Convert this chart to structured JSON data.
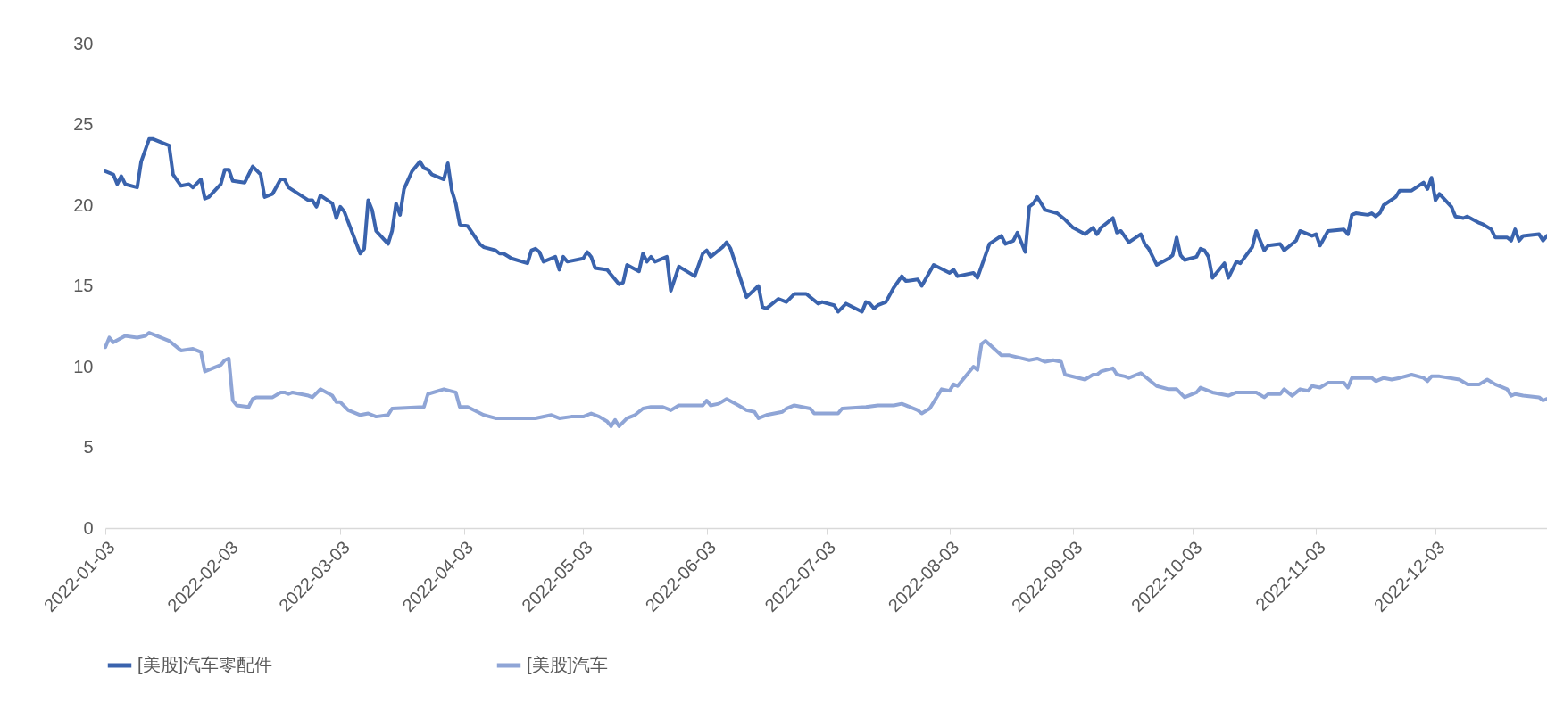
{
  "chart_data": {
    "type": "line",
    "legend": "bottom",
    "xlim": [
      "2022-01-03",
      "2022-12-31"
    ],
    "xticks": [
      "2022-01-03",
      "2022-02-03",
      "2022-03-03",
      "2022-04-03",
      "2022-05-03",
      "2022-06-03",
      "2022-07-03",
      "2022-08-03",
      "2022-09-03",
      "2022-10-03",
      "2022-11-03",
      "2022-12-03"
    ],
    "ylim": [
      0,
      30
    ],
    "yticks": [
      0,
      5,
      10,
      15,
      20,
      25,
      30
    ],
    "series": [
      {
        "name": "[美股]汽车零配件",
        "color": "#3a63ad",
        "x": [
          "2022-01-03",
          "2022-01-05",
          "2022-01-06",
          "2022-01-07",
          "2022-01-08",
          "2022-01-11",
          "2022-01-12",
          "2022-01-14",
          "2022-01-15",
          "2022-01-19",
          "2022-01-20",
          "2022-01-22",
          "2022-01-24",
          "2022-01-25",
          "2022-01-27",
          "2022-01-28",
          "2022-01-29",
          "2022-02-01",
          "2022-02-02",
          "2022-02-03",
          "2022-02-04",
          "2022-02-07",
          "2022-02-09",
          "2022-02-11",
          "2022-02-12",
          "2022-02-14",
          "2022-02-16",
          "2022-02-17",
          "2022-02-18",
          "2022-02-23",
          "2022-02-24",
          "2022-02-25",
          "2022-02-26",
          "2022-03-01",
          "2022-03-02",
          "2022-03-03",
          "2022-03-04",
          "2022-03-08",
          "2022-03-09",
          "2022-03-10",
          "2022-03-11",
          "2022-03-12",
          "2022-03-15",
          "2022-03-16",
          "2022-03-17",
          "2022-03-18",
          "2022-03-19",
          "2022-03-21",
          "2022-03-23",
          "2022-03-24",
          "2022-03-25",
          "2022-03-26",
          "2022-03-29",
          "2022-03-30",
          "2022-03-31",
          "2022-04-01",
          "2022-04-02",
          "2022-04-04",
          "2022-04-07",
          "2022-04-08",
          "2022-04-11",
          "2022-04-12",
          "2022-04-13",
          "2022-04-15",
          "2022-04-19",
          "2022-04-20",
          "2022-04-21",
          "2022-04-22",
          "2022-04-23",
          "2022-04-26",
          "2022-04-27",
          "2022-04-28",
          "2022-04-29",
          "2022-05-03",
          "2022-05-04",
          "2022-05-05",
          "2022-05-06",
          "2022-05-09",
          "2022-05-11",
          "2022-05-12",
          "2022-05-13",
          "2022-05-14",
          "2022-05-17",
          "2022-05-18",
          "2022-05-19",
          "2022-05-20",
          "2022-05-21",
          "2022-05-24",
          "2022-05-25",
          "2022-05-27",
          "2022-05-31",
          "2022-06-02",
          "2022-06-03",
          "2022-06-04",
          "2022-06-07",
          "2022-06-08",
          "2022-06-09",
          "2022-06-13",
          "2022-06-16",
          "2022-06-17",
          "2022-06-18",
          "2022-06-21",
          "2022-06-23",
          "2022-06-25",
          "2022-06-28",
          "2022-07-01",
          "2022-07-02",
          "2022-07-05",
          "2022-07-06",
          "2022-07-08",
          "2022-07-12",
          "2022-07-13",
          "2022-07-14",
          "2022-07-15",
          "2022-07-16",
          "2022-07-18",
          "2022-07-20",
          "2022-07-22",
          "2022-07-23",
          "2022-07-26",
          "2022-07-27",
          "2022-07-30",
          "2022-08-03",
          "2022-08-04",
          "2022-08-05",
          "2022-08-09",
          "2022-08-10",
          "2022-08-13",
          "2022-08-16",
          "2022-08-17",
          "2022-08-19",
          "2022-08-20",
          "2022-08-22",
          "2022-08-23",
          "2022-08-24",
          "2022-08-25",
          "2022-08-27",
          "2022-08-30",
          "2022-09-01",
          "2022-09-03",
          "2022-09-06",
          "2022-09-08",
          "2022-09-09",
          "2022-09-10",
          "2022-09-13",
          "2022-09-14",
          "2022-09-15",
          "2022-09-17",
          "2022-09-20",
          "2022-09-21",
          "2022-09-22",
          "2022-09-24",
          "2022-09-27",
          "2022-09-28",
          "2022-09-29",
          "2022-09-30",
          "2022-10-01",
          "2022-10-04",
          "2022-10-05",
          "2022-10-06",
          "2022-10-07",
          "2022-10-08",
          "2022-10-11",
          "2022-10-12",
          "2022-10-14",
          "2022-10-15",
          "2022-10-18",
          "2022-10-19",
          "2022-10-21",
          "2022-10-22",
          "2022-10-25",
          "2022-10-26",
          "2022-10-29",
          "2022-10-30",
          "2022-11-02",
          "2022-11-03",
          "2022-11-04",
          "2022-11-06",
          "2022-11-10",
          "2022-11-11",
          "2022-11-12",
          "2022-11-13",
          "2022-11-16",
          "2022-11-17",
          "2022-11-18",
          "2022-11-19",
          "2022-11-20",
          "2022-11-23",
          "2022-11-24",
          "2022-11-27",
          "2022-11-30",
          "2022-12-01",
          "2022-12-02",
          "2022-12-03",
          "2022-12-04",
          "2022-12-07",
          "2022-12-08",
          "2022-12-10",
          "2022-12-11",
          "2022-12-14",
          "2022-12-15",
          "2022-12-17",
          "2022-12-18",
          "2022-12-21",
          "2022-12-22",
          "2022-12-23",
          "2022-12-24",
          "2022-12-25",
          "2022-12-29",
          "2022-12-30",
          "2022-12-31"
        ],
        "values": [
          22.1,
          21.9,
          21.3,
          21.8,
          21.3,
          21.1,
          22.7,
          24.1,
          24.1,
          23.7,
          21.9,
          21.2,
          21.3,
          21.1,
          21.6,
          20.4,
          20.5,
          21.3,
          22.2,
          22.2,
          21.5,
          21.4,
          22.4,
          21.9,
          20.5,
          20.7,
          21.6,
          21.6,
          21.1,
          20.3,
          20.3,
          19.9,
          20.6,
          20.1,
          19.2,
          19.9,
          19.6,
          17.0,
          17.3,
          20.3,
          19.7,
          18.4,
          17.6,
          18.4,
          20.1,
          19.4,
          21.0,
          22.1,
          22.7,
          22.3,
          22.2,
          21.9,
          21.6,
          22.6,
          20.9,
          20.1,
          18.8,
          18.7,
          17.6,
          17.4,
          17.2,
          17.0,
          17.0,
          16.7,
          16.4,
          17.2,
          17.3,
          17.1,
          16.5,
          16.8,
          16.0,
          16.8,
          16.5,
          16.7,
          17.1,
          16.8,
          16.1,
          16.0,
          15.4,
          15.1,
          15.2,
          16.3,
          15.9,
          17.0,
          16.5,
          16.8,
          16.5,
          16.8,
          14.7,
          16.2,
          15.6,
          17.0,
          17.2,
          16.8,
          17.4,
          17.7,
          17.3,
          14.3,
          15.0,
          13.7,
          13.6,
          14.2,
          14.0,
          14.5,
          14.5,
          13.9,
          14.0,
          13.8,
          13.4,
          13.9,
          13.4,
          14.0,
          13.9,
          13.6,
          13.8,
          14.0,
          14.9,
          15.6,
          15.3,
          15.4,
          15.0,
          16.3,
          15.8,
          16.0,
          15.6,
          15.8,
          15.5,
          17.6,
          18.1,
          17.6,
          17.8,
          18.3,
          17.1,
          19.9,
          20.1,
          20.5,
          19.7,
          19.5,
          19.1,
          18.6,
          18.2,
          18.6,
          18.2,
          18.6,
          19.2,
          18.3,
          18.4,
          17.7,
          18.2,
          17.6,
          17.3,
          16.3,
          16.7,
          16.9,
          18.0,
          16.9,
          16.6,
          16.8,
          17.3,
          17.2,
          16.8,
          15.5,
          16.4,
          15.5,
          16.5,
          16.4,
          17.4,
          18.4,
          17.2,
          17.5,
          17.6,
          17.2,
          17.8,
          18.4,
          18.1,
          18.2,
          17.5,
          18.4,
          18.5,
          18.2,
          19.4,
          19.5,
          19.4,
          19.5,
          19.3,
          19.5,
          20.0,
          20.5,
          20.9,
          20.9,
          21.4,
          21.0,
          21.7,
          20.3,
          20.7,
          19.9,
          19.3,
          19.2,
          19.3,
          18.9,
          18.8,
          18.5,
          18.0,
          18.0,
          17.8,
          18.5,
          17.8,
          18.1,
          18.2,
          17.8,
          18.1
        ]
      },
      {
        "name": "[美股]汽车",
        "color": "#8fa5d6",
        "x": [
          "2022-01-03",
          "2022-01-04",
          "2022-01-05",
          "2022-01-08",
          "2022-01-11",
          "2022-01-13",
          "2022-01-14",
          "2022-01-15",
          "2022-01-19",
          "2022-01-22",
          "2022-01-25",
          "2022-01-27",
          "2022-01-28",
          "2022-02-01",
          "2022-02-02",
          "2022-02-03",
          "2022-02-04",
          "2022-02-05",
          "2022-02-08",
          "2022-02-09",
          "2022-02-10",
          "2022-02-14",
          "2022-02-16",
          "2022-02-17",
          "2022-02-18",
          "2022-02-19",
          "2022-02-23",
          "2022-02-24",
          "2022-02-26",
          "2022-03-01",
          "2022-03-02",
          "2022-03-03",
          "2022-03-05",
          "2022-03-08",
          "2022-03-10",
          "2022-03-12",
          "2022-03-15",
          "2022-03-16",
          "2022-03-24",
          "2022-03-25",
          "2022-03-29",
          "2022-04-01",
          "2022-04-02",
          "2022-04-04",
          "2022-04-08",
          "2022-04-11",
          "2022-04-17",
          "2022-04-21",
          "2022-04-25",
          "2022-04-27",
          "2022-04-30",
          "2022-05-03",
          "2022-05-05",
          "2022-05-07",
          "2022-05-09",
          "2022-05-10",
          "2022-05-11",
          "2022-05-12",
          "2022-05-14",
          "2022-05-16",
          "2022-05-18",
          "2022-05-20",
          "2022-05-23",
          "2022-05-25",
          "2022-05-27",
          "2022-06-02",
          "2022-06-03",
          "2022-06-04",
          "2022-06-06",
          "2022-06-08",
          "2022-06-11",
          "2022-06-13",
          "2022-06-15",
          "2022-06-16",
          "2022-06-18",
          "2022-06-22",
          "2022-06-23",
          "2022-06-25",
          "2022-06-29",
          "2022-06-30",
          "2022-07-06",
          "2022-07-07",
          "2022-07-13",
          "2022-07-16",
          "2022-07-20",
          "2022-07-22",
          "2022-07-26",
          "2022-07-27",
          "2022-07-29",
          "2022-08-01",
          "2022-08-03",
          "2022-08-04",
          "2022-08-05",
          "2022-08-09",
          "2022-08-10",
          "2022-08-11",
          "2022-08-12",
          "2022-08-16",
          "2022-08-18",
          "2022-08-23",
          "2022-08-25",
          "2022-08-27",
          "2022-08-29",
          "2022-08-31",
          "2022-09-01",
          "2022-09-06",
          "2022-09-08",
          "2022-09-09",
          "2022-09-10",
          "2022-09-13",
          "2022-09-14",
          "2022-09-16",
          "2022-09-17",
          "2022-09-20",
          "2022-09-24",
          "2022-09-27",
          "2022-09-29",
          "2022-10-01",
          "2022-10-04",
          "2022-10-05",
          "2022-10-08",
          "2022-10-12",
          "2022-10-14",
          "2022-10-19",
          "2022-10-21",
          "2022-10-22",
          "2022-10-25",
          "2022-10-26",
          "2022-10-28",
          "2022-10-30",
          "2022-11-01",
          "2022-11-02",
          "2022-11-04",
          "2022-11-06",
          "2022-11-10",
          "2022-11-11",
          "2022-11-12",
          "2022-11-17",
          "2022-11-18",
          "2022-11-20",
          "2022-11-22",
          "2022-11-24",
          "2022-11-27",
          "2022-11-30",
          "2022-12-01",
          "2022-12-02",
          "2022-12-04",
          "2022-12-09",
          "2022-12-11",
          "2022-12-14",
          "2022-12-16",
          "2022-12-18",
          "2022-12-21",
          "2022-12-22",
          "2022-12-23",
          "2022-12-25",
          "2022-12-29",
          "2022-12-30",
          "2022-12-31"
        ],
        "values": [
          11.2,
          11.8,
          11.5,
          11.9,
          11.8,
          11.9,
          12.1,
          12.0,
          11.6,
          11.0,
          11.1,
          10.9,
          9.7,
          10.1,
          10.4,
          10.5,
          7.9,
          7.6,
          7.5,
          8.0,
          8.1,
          8.1,
          8.4,
          8.4,
          8.3,
          8.4,
          8.2,
          8.1,
          8.6,
          8.2,
          7.8,
          7.8,
          7.3,
          7.0,
          7.1,
          6.9,
          7.0,
          7.4,
          7.5,
          8.3,
          8.6,
          8.4,
          7.5,
          7.5,
          7.0,
          6.8,
          6.8,
          6.8,
          7.0,
          6.8,
          6.9,
          6.9,
          7.1,
          6.9,
          6.6,
          6.3,
          6.7,
          6.3,
          6.8,
          7.0,
          7.4,
          7.5,
          7.5,
          7.3,
          7.6,
          7.6,
          7.9,
          7.6,
          7.7,
          8.0,
          7.6,
          7.3,
          7.2,
          6.8,
          7.0,
          7.2,
          7.4,
          7.6,
          7.4,
          7.1,
          7.1,
          7.4,
          7.5,
          7.6,
          7.6,
          7.7,
          7.3,
          7.1,
          7.4,
          8.6,
          8.5,
          8.9,
          8.8,
          10.0,
          9.8,
          11.4,
          11.6,
          10.7,
          10.7,
          10.4,
          10.5,
          10.3,
          10.4,
          10.3,
          9.5,
          9.2,
          9.5,
          9.5,
          9.7,
          9.9,
          9.5,
          9.4,
          9.3,
          9.6,
          8.8,
          8.6,
          8.6,
          8.1,
          8.4,
          8.7,
          8.4,
          8.2,
          8.4,
          8.4,
          8.1,
          8.3,
          8.3,
          8.6,
          8.2,
          8.6,
          8.5,
          8.8,
          8.7,
          9.0,
          9.0,
          8.7,
          9.3,
          9.3,
          9.1,
          9.3,
          9.2,
          9.3,
          9.5,
          9.3,
          9.1,
          9.4,
          9.4,
          9.2,
          8.9,
          8.9,
          9.2,
          8.9,
          8.6,
          8.2,
          8.3,
          8.2,
          8.1,
          7.9,
          8.0
        ]
      }
    ]
  }
}
